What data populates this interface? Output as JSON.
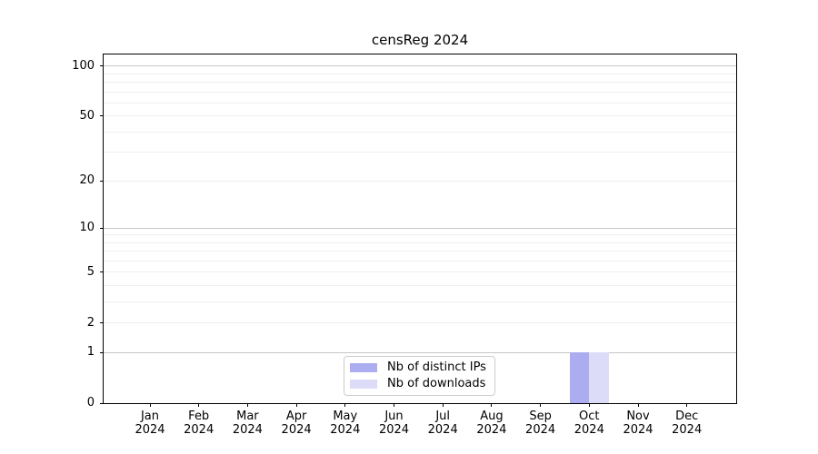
{
  "chart_data": {
    "type": "bar",
    "title": "censReg 2024",
    "x_ticks": [
      {
        "month": "Jan",
        "year": "2024"
      },
      {
        "month": "Feb",
        "year": "2024"
      },
      {
        "month": "Mar",
        "year": "2024"
      },
      {
        "month": "Apr",
        "year": "2024"
      },
      {
        "month": "May",
        "year": "2024"
      },
      {
        "month": "Jun",
        "year": "2024"
      },
      {
        "month": "Jul",
        "year": "2024"
      },
      {
        "month": "Aug",
        "year": "2024"
      },
      {
        "month": "Sep",
        "year": "2024"
      },
      {
        "month": "Oct",
        "year": "2024"
      },
      {
        "month": "Nov",
        "year": "2024"
      },
      {
        "month": "Dec",
        "year": "2024"
      }
    ],
    "y_ticks": [
      0,
      1,
      2,
      5,
      10,
      20,
      50,
      100
    ],
    "y_tick_labels": [
      "0",
      "1",
      "2",
      "5",
      "10",
      "20",
      "50",
      "100"
    ],
    "y_scale": {
      "type": "log1p",
      "min": 0,
      "top_value": 117.6
    },
    "grid": {
      "orientation": "horizontal",
      "major_lines": [
        1,
        10,
        100
      ],
      "minor_lines": [
        2,
        3,
        4,
        5,
        6,
        7,
        8,
        9,
        20,
        30,
        40,
        50,
        60,
        70,
        80,
        90
      ]
    },
    "series": [
      {
        "name": "Nb of distinct IPs",
        "color": "#acacf0",
        "values": [
          0,
          0,
          0,
          0,
          0,
          0,
          0,
          0,
          0,
          1,
          0,
          0
        ]
      },
      {
        "name": "Nb of downloads",
        "color": "#dcdcf8",
        "values": [
          0,
          0,
          0,
          0,
          0,
          0,
          0,
          0,
          0,
          1,
          0,
          0
        ]
      }
    ],
    "legend_position": "lower center",
    "colors": {
      "grid_major": "#c6c6c6",
      "grid_minor": "#efefef",
      "axis": "#000000",
      "background": "#ffffff"
    }
  }
}
